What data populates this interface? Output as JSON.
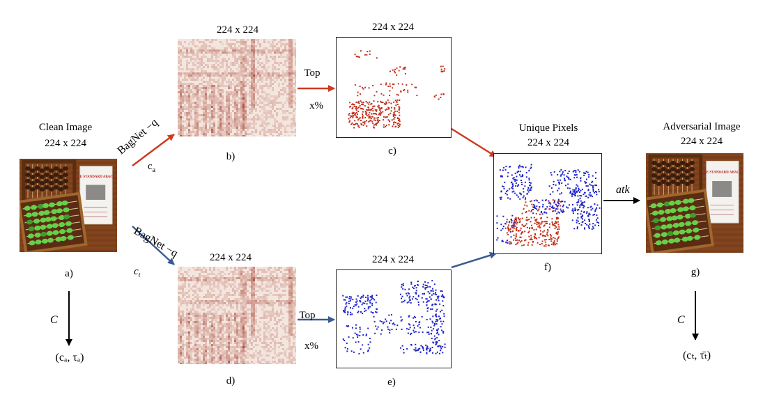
{
  "clean": {
    "title": "Clean Image",
    "size": "224 x 224",
    "letter": "a)"
  },
  "heatmap_a": {
    "size": "224 x 224",
    "letter": "b)"
  },
  "topmask_a": {
    "size": "224 x 224",
    "letter": "c)",
    "top": "Top",
    "pct": "x%"
  },
  "heatmap_t": {
    "size": "224 x 224",
    "letter": "d)"
  },
  "topmask_t": {
    "size": "224 x 224",
    "letter": "e)",
    "top": "Top",
    "pct": "x%"
  },
  "unique": {
    "title": "Unique Pixels",
    "size": "224 x 224",
    "letter": "f)"
  },
  "adversarial": {
    "title": "Adversarial Image",
    "size": "224 x 224",
    "letter": "g)"
  },
  "edges": {
    "bagnet_a": "BagNet −q",
    "class_a_base": "c",
    "class_a_sub": "a",
    "bagnet_t": "BagNet −q",
    "class_t_base": "c",
    "class_t_sub": "t",
    "atk": "atk",
    "C_left": "C",
    "C_right": "C"
  },
  "outputs": {
    "left": "(cₐ, τₐ)",
    "right": "(cₜ, τ̄ₜ)"
  },
  "photo_paper_title": "THE STANDARD ABACUS",
  "colors": {
    "red_arrow": "#cc3a22",
    "blue_arrow": "#3a5a92",
    "red_dot": "#c0301c",
    "blue_dot": "#1c22c8"
  }
}
